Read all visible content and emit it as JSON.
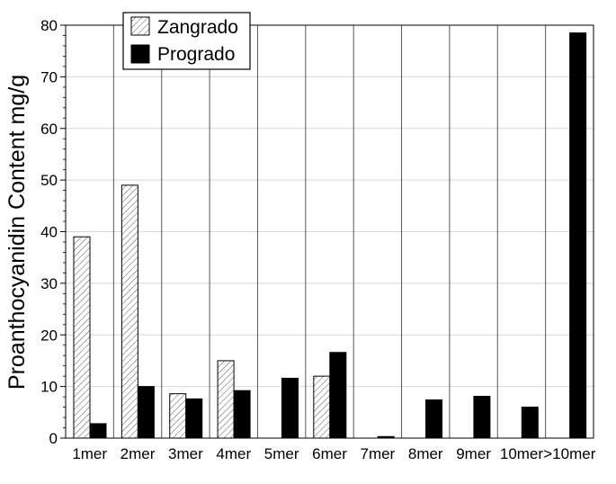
{
  "chart_data": {
    "type": "bar",
    "categories": [
      "1mer",
      "2mer",
      "3mer",
      "4mer",
      "5mer",
      "6mer",
      "7mer",
      "8mer",
      "9mer",
      "10mer",
      ">10mer"
    ],
    "series": [
      {
        "name": "Zangrado",
        "values": [
          39,
          49,
          8.6,
          15,
          0,
          12,
          0,
          0,
          0,
          0,
          0
        ],
        "pattern": "hatched"
      },
      {
        "name": "Prograd​o",
        "values": [
          2.8,
          10,
          7.6,
          9.2,
          11.6,
          16.6,
          0.3,
          7.4,
          8.1,
          6,
          78.5
        ],
        "color": "#000000"
      }
    ],
    "ylabel": "Proanthocyanidin Content  mg/g",
    "ylim": [
      0,
      80
    ],
    "yticks": [
      0,
      10,
      20,
      30,
      40,
      50,
      60,
      70,
      80
    ],
    "grid": "horizontal-and-category-separators",
    "legend_position": "top-left"
  }
}
